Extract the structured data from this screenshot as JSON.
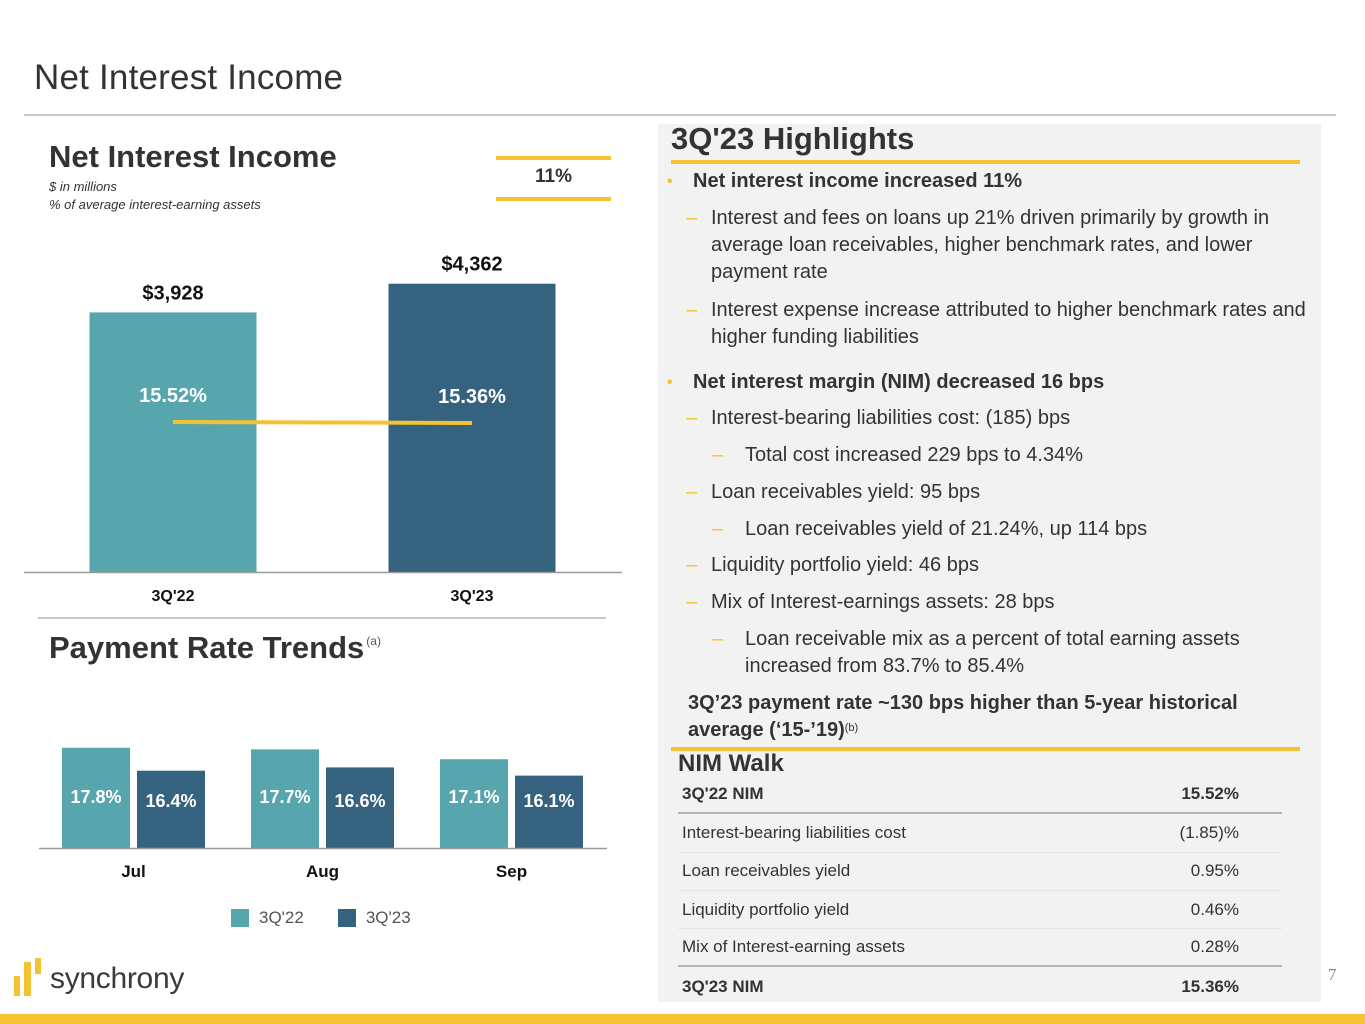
{
  "page": {
    "title": "Net Interest Income",
    "page_number": "7",
    "brand": "synchrony"
  },
  "colors": {
    "series_3q22": "#58a6ad",
    "series_3q23": "#35637f",
    "accent": "#f5c234",
    "text": "#333333",
    "panel": "#f2f2f2"
  },
  "nii": {
    "title": "Net Interest Income",
    "subtitle_1": "$ in millions",
    "subtitle_2": "% of average interest-earning assets",
    "growth": "11%"
  },
  "payment_rate": {
    "title": "Payment Rate Trends",
    "footnote": "(a)"
  },
  "chart_data": [
    {
      "type": "bar",
      "title": "Net Interest Income",
      "subtitle": "$ in millions; % of average interest-earning assets",
      "categories": [
        "3Q'22",
        "3Q'23"
      ],
      "values": [
        3928,
        4362
      ],
      "value_labels": [
        "$3,928",
        "$4,362"
      ],
      "overlay_line": {
        "name": "NIM",
        "values": [
          15.52,
          15.36
        ],
        "labels": [
          "15.52%",
          "15.36%"
        ]
      },
      "annotation": "11%",
      "xlabel": "",
      "ylabel": "",
      "ylim": [
        0,
        4600
      ],
      "grid": false
    },
    {
      "type": "bar",
      "title": "Payment Rate Trends",
      "categories": [
        "Jul",
        "Aug",
        "Sep"
      ],
      "series": [
        {
          "name": "3Q'22",
          "values": [
            17.8,
            17.7,
            17.1
          ],
          "labels": [
            "17.8%",
            "17.7%",
            "17.1%"
          ]
        },
        {
          "name": "3Q'23",
          "values": [
            16.4,
            16.6,
            16.1
          ],
          "labels": [
            "16.4%",
            "16.6%",
            "16.1%"
          ]
        }
      ],
      "legend": {
        "position": "bottom",
        "entries": [
          "3Q'22",
          "3Q'23"
        ]
      },
      "xlabel": "",
      "ylabel": "",
      "ylim": [
        12.0,
        18.0
      ],
      "grid": false
    }
  ],
  "highlights": {
    "title": "3Q'23 Highlights",
    "items": [
      {
        "level": 1,
        "text": "Net interest income increased 11%"
      },
      {
        "level": 2,
        "text": "Interest and fees on loans up 21% driven primarily by growth in average loan receivables, higher benchmark rates, and lower payment rate"
      },
      {
        "level": 2,
        "text": "Interest expense increase attributed to higher benchmark rates and higher funding liabilities"
      },
      {
        "level": 1,
        "text": "Net interest margin (NIM) decreased 16 bps"
      },
      {
        "level": 2,
        "text": "Interest-bearing liabilities cost: (185) bps"
      },
      {
        "level": 3,
        "text": "Total cost increased 229 bps to 4.34%"
      },
      {
        "level": 2,
        "text": "Loan receivables yield: 95 bps"
      },
      {
        "level": 3,
        "text": "Loan receivables yield of 21.24%, up 114 bps"
      },
      {
        "level": 2,
        "text": "Liquidity portfolio yield: 46 bps"
      },
      {
        "level": 2,
        "text": "Mix of Interest-earnings assets: 28 bps"
      },
      {
        "level": 3,
        "text": "Loan receivable mix as a percent of total earning assets increased from 83.7% to 85.4%"
      }
    ],
    "callout": "3Q’23 payment rate ~130 bps higher than 5-year historical average (‘15-’19)",
    "callout_footnote": "(b)"
  },
  "nim_walk": {
    "title": "NIM Walk",
    "rows": [
      {
        "label": "3Q'22 NIM",
        "value": "15.52%",
        "bold": true
      },
      {
        "label": "Interest-bearing liabilities cost",
        "value": "(1.85)%",
        "bold": false
      },
      {
        "label": "Loan receivables yield",
        "value": "0.95%",
        "bold": false
      },
      {
        "label": "Liquidity portfolio yield",
        "value": "0.46%",
        "bold": false
      },
      {
        "label": "Mix of Interest-earning assets",
        "value": "0.28%",
        "bold": false
      },
      {
        "label": "3Q'23 NIM",
        "value": "15.36%",
        "bold": true
      }
    ]
  }
}
